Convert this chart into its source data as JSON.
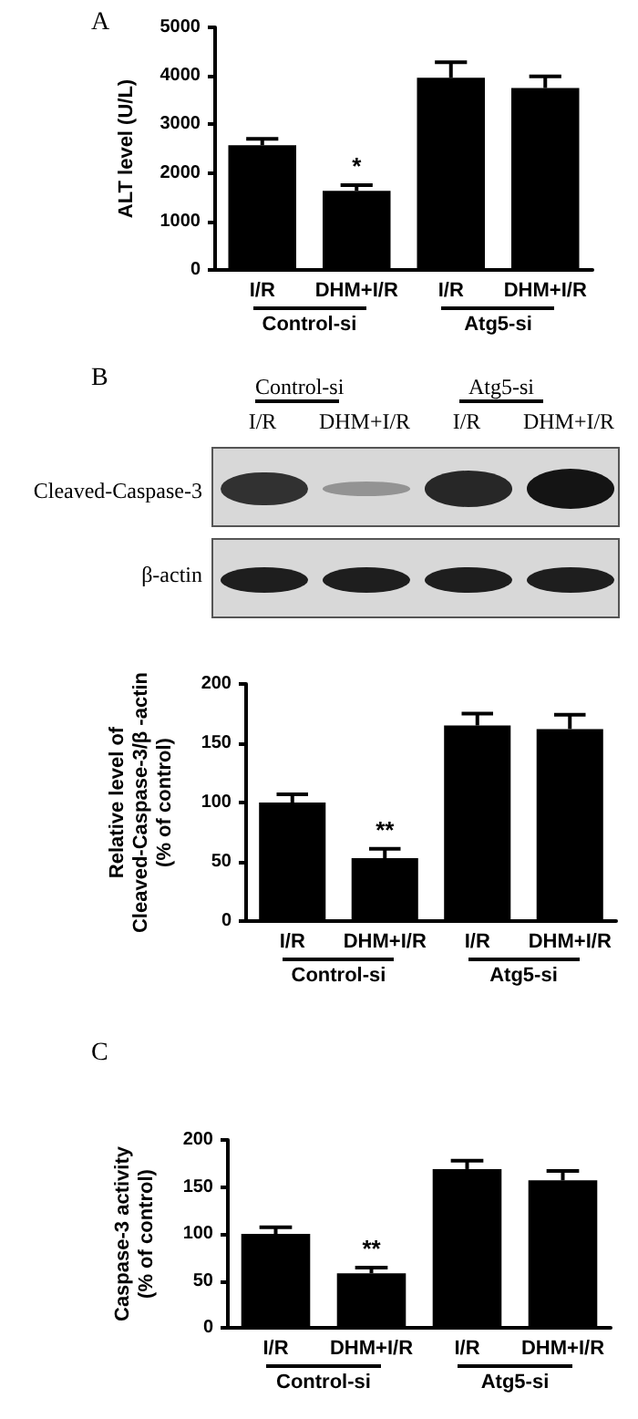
{
  "chart_data": [
    {
      "type": "bar",
      "title": "A",
      "ylabel": "ALT level (U/L)",
      "categories": [
        "I/R",
        "DHM+I/R",
        "I/R",
        "DHM+I/R"
      ],
      "values": [
        2570,
        1630,
        3960,
        3750
      ],
      "errors": [
        130,
        120,
        320,
        240
      ],
      "value_labels": [
        null,
        "*",
        null,
        null
      ],
      "color": "#000000",
      "ylim": [
        0,
        5000
      ],
      "yticks": [
        0,
        1000,
        2000,
        3000,
        4000,
        5000
      ],
      "annotations": [
        "Control-si",
        "Atg5-si"
      ]
    },
    {
      "type": "other",
      "title": "B",
      "annotations": [
        "Control-si",
        "Atg5-si",
        "I/R",
        "DHM+I/R",
        "I/R",
        "DHM+I/R",
        "Cleaved-Caspase-3",
        "β-actin"
      ]
    },
    {
      "type": "bar",
      "ylabel": "Relative level of\nCleaved-Caspase-3/β -actin\n(% of control)",
      "categories": [
        "I/R",
        "DHM+I/R",
        "I/R",
        "DHM+I/R"
      ],
      "values": [
        100,
        53,
        165,
        162
      ],
      "errors": [
        7,
        8,
        10,
        12
      ],
      "value_labels": [
        null,
        "**",
        null,
        null
      ],
      "color": "#000000",
      "ylim": [
        0,
        200
      ],
      "yticks": [
        0,
        50,
        100,
        150,
        200
      ],
      "annotations": [
        "Control-si",
        "Atg5-si"
      ]
    },
    {
      "type": "bar",
      "title": "C",
      "ylabel": "Caspase-3 activity\n(% of control)",
      "categories": [
        "I/R",
        "DHM+I/R",
        "I/R",
        "DHM+I/R"
      ],
      "values": [
        100,
        58,
        169,
        157
      ],
      "errors": [
        7,
        6,
        9,
        10
      ],
      "value_labels": [
        null,
        "**",
        null,
        null
      ],
      "color": "#000000",
      "ylim": [
        0,
        200
      ],
      "yticks": [
        0,
        50,
        100,
        150,
        200
      ],
      "annotations": [
        "Control-si",
        "Atg5-si"
      ]
    }
  ]
}
